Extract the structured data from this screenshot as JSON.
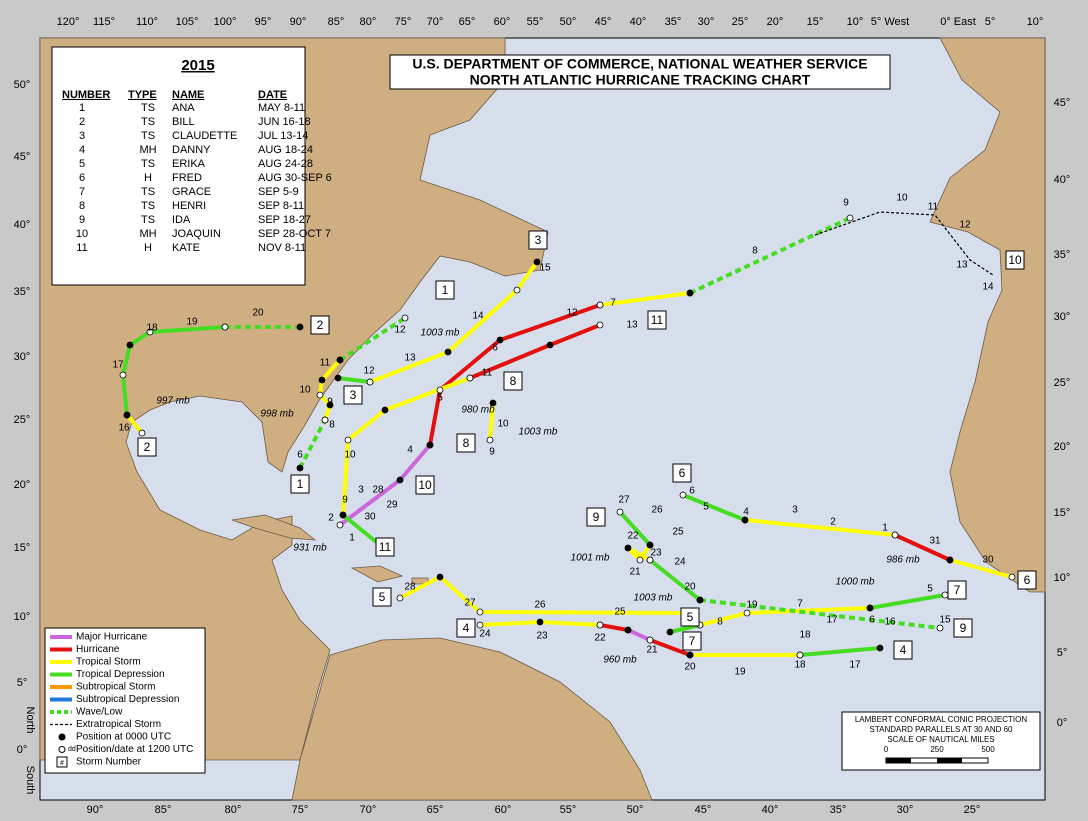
{
  "header": {
    "year": "2015",
    "title_lines": [
      "U.S. DEPARTMENT OF COMMERCE, NATIONAL WEATHER SERVICE",
      "NORTH ATLANTIC HURRICANE TRACKING CHART"
    ]
  },
  "table": {
    "columns": [
      "NUMBER",
      "TYPE",
      "NAME",
      "DATE"
    ],
    "rows": [
      [
        "1",
        "TS",
        "ANA",
        "MAY 8-11"
      ],
      [
        "2",
        "TS",
        "BILL",
        "JUN 16-18"
      ],
      [
        "3",
        "TS",
        "CLAUDETTE",
        "JUL 13-14"
      ],
      [
        "4",
        "MH",
        "DANNY",
        "AUG 18-24"
      ],
      [
        "5",
        "TS",
        "ERIKA",
        "AUG 24-28"
      ],
      [
        "6",
        "H",
        "FRED",
        "AUG 30-SEP 6"
      ],
      [
        "7",
        "TS",
        "GRACE",
        "SEP  5-9"
      ],
      [
        "8",
        "TS",
        "HENRI",
        "SEP  8-11"
      ],
      [
        "9",
        "TS",
        "IDA",
        "SEP 18-27"
      ],
      [
        "10",
        "MH",
        "JOAQUIN",
        "SEP 28-OCT 7"
      ],
      [
        "11",
        "H",
        "KATE",
        "NOV  8-11"
      ]
    ]
  },
  "legend": {
    "items": [
      "Major Hurricane",
      "Hurricane",
      "Tropical Storm",
      "Tropical Depression",
      "Subtropical Storm",
      "Subtropical Depression",
      "Wave/Low",
      "Extratropical Storm",
      "Position at 0000 UTC",
      "Position/date at 1200 UTC",
      "Storm Number"
    ],
    "date_marker": "dd",
    "number_marker": "#"
  },
  "projection": {
    "lines": [
      "LAMBERT CONFORMAL CONIC PROJECTION",
      "STANDARD PARALLELS AT 30 AND 60",
      "SCALE OF NAUTICAL MILES"
    ],
    "scale": [
      "0",
      "250",
      "500"
    ]
  },
  "axes": {
    "top": [
      "120°",
      "115°",
      "110°",
      "105°",
      "100°",
      "95°",
      "90°",
      "85°",
      "80°",
      "75°",
      "70°",
      "65°",
      "60°",
      "55°",
      "50°",
      "45°",
      "40°",
      "35°",
      "30°",
      "25°",
      "20°",
      "15°",
      "10°",
      "5° West",
      "0° East",
      "5°",
      "10°"
    ],
    "bottom": [
      "90°",
      "85°",
      "80°",
      "75°",
      "70°",
      "65°",
      "60°",
      "55°",
      "50°",
      "45°",
      "40°",
      "35°",
      "30°",
      "25°"
    ],
    "left": [
      "50°",
      "45°",
      "40°",
      "35°",
      "30°",
      "25°",
      "20°",
      "15°",
      "10°",
      "5°",
      "0°"
    ],
    "right": [
      "45°",
      "40°",
      "35°",
      "30°",
      "25°",
      "20°",
      "15°",
      "10°",
      "5°",
      "0°"
    ],
    "north": "North",
    "south": "South"
  },
  "storms": [
    {
      "boxes": [
        "1",
        "1"
      ],
      "labels": [
        "6",
        "8",
        "9",
        "10",
        "11",
        "12"
      ],
      "pressures": [
        "998 mb"
      ]
    },
    {
      "boxes": [
        "2",
        "2"
      ],
      "labels": [
        "16",
        "17",
        "18",
        "19",
        "20"
      ],
      "pressures": [
        "997 mb"
      ]
    },
    {
      "boxes": [
        "3",
        "3"
      ],
      "labels": [
        "12",
        "13",
        "14",
        "15"
      ],
      "pressures": [
        "1003 mb"
      ]
    },
    {
      "boxes": [
        "4",
        "4"
      ],
      "labels": [
        "17",
        "18",
        "19",
        "20",
        "21",
        "22",
        "23",
        "24"
      ],
      "pressures": [
        "960 mb"
      ]
    },
    {
      "boxes": [
        "5",
        "5"
      ],
      "labels": [
        "25",
        "26",
        "27",
        "28"
      ],
      "pressures": []
    },
    {
      "boxes": [
        "6",
        "6"
      ],
      "labels": [
        "30",
        "31",
        "1",
        "2",
        "3",
        "4",
        "5",
        "6"
      ],
      "pressures": [
        "986 mb"
      ]
    },
    {
      "boxes": [
        "7",
        "7"
      ],
      "labels": [
        "5",
        "6",
        "7",
        "8"
      ],
      "pressures": [
        "1000 mb"
      ]
    },
    {
      "boxes": [
        "8",
        "8"
      ],
      "labels": [
        "9",
        "10",
        "11"
      ],
      "pressures": [
        "1003 mb"
      ]
    },
    {
      "boxes": [
        "9",
        "9"
      ],
      "labels": [
        "27",
        "26",
        "25",
        "24",
        "23",
        "22",
        "21",
        "20",
        "19",
        "18",
        "17",
        "16",
        "15"
      ],
      "pressures": [
        "1001 mb",
        "1003 mb"
      ]
    },
    {
      "boxes": [
        "10",
        "10"
      ],
      "labels": [
        "28",
        "29",
        "30",
        "1",
        "2",
        "3",
        "4",
        "5",
        "6",
        "7",
        "8",
        "9",
        "10",
        "11",
        "12",
        "13",
        "14"
      ],
      "pressures": [
        "931 mb"
      ]
    },
    {
      "boxes": [
        "11",
        "11"
      ],
      "labels": [
        "9",
        "10",
        "12",
        "13"
      ],
      "pressures": [
        "980 mb"
      ]
    }
  ]
}
